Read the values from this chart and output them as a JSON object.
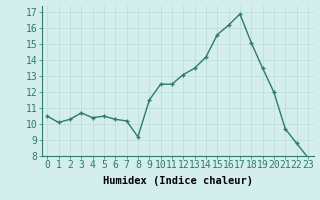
{
  "x": [
    0,
    1,
    2,
    3,
    4,
    5,
    6,
    7,
    8,
    9,
    10,
    11,
    12,
    13,
    14,
    15,
    16,
    17,
    18,
    19,
    20,
    21,
    22,
    23
  ],
  "y": [
    10.5,
    10.1,
    10.3,
    10.7,
    10.4,
    10.5,
    10.3,
    10.2,
    9.2,
    11.5,
    12.5,
    12.5,
    13.1,
    13.5,
    14.2,
    15.6,
    16.2,
    16.9,
    15.1,
    13.5,
    12.0,
    9.7,
    8.8,
    7.9
  ],
  "line_color": "#2d7a6e",
  "marker": "+",
  "bg_color": "#d4eeee",
  "grid_color": "#c0dede",
  "xlabel": "Humidex (Indice chaleur)",
  "ylim": [
    8,
    17.4
  ],
  "yticks": [
    8,
    9,
    10,
    11,
    12,
    13,
    14,
    15,
    16,
    17
  ],
  "xticks": [
    0,
    1,
    2,
    3,
    4,
    5,
    6,
    7,
    8,
    9,
    10,
    11,
    12,
    13,
    14,
    15,
    16,
    17,
    18,
    19,
    20,
    21,
    22,
    23
  ],
  "xlabel_fontsize": 7.5,
  "tick_fontsize": 7,
  "linewidth": 1.0,
  "markersize": 3.5,
  "markeredgewidth": 1.0
}
